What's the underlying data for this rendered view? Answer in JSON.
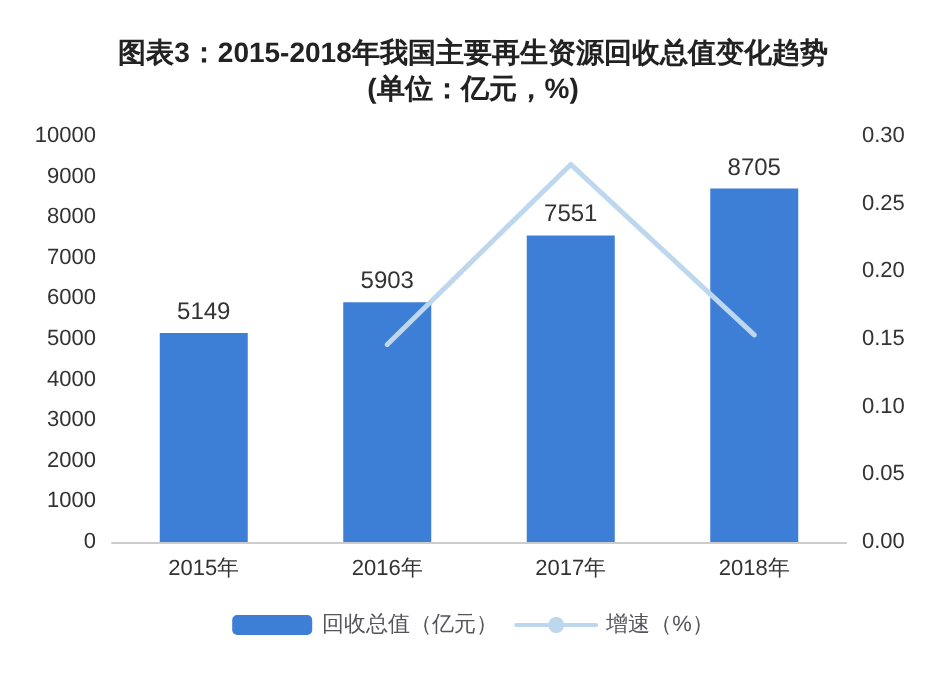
{
  "chart_data": {
    "type": "bar",
    "title": "图表3：2015-2018年我国主要再生资源回收总值变化趋势\n(单位：亿元，%)",
    "categories": [
      "2015年",
      "2016年",
      "2017年",
      "2018年"
    ],
    "series": [
      {
        "name": "回收总值（亿元）",
        "color": "#3d7fd6",
        "values": [
          5149,
          5903,
          7551,
          8705
        ],
        "value_labels": [
          "5149",
          "5903",
          "7551",
          "8705"
        ]
      },
      {
        "name": "增速（%）",
        "type": "line",
        "axis": "y2",
        "color": "#bdd7ee",
        "values": [
          null,
          0.146,
          0.279,
          0.153
        ]
      }
    ],
    "ylim": [
      0,
      10000
    ],
    "yticks": [
      0,
      1000,
      2000,
      3000,
      4000,
      5000,
      6000,
      7000,
      8000,
      9000,
      10000
    ],
    "y2lim": [
      0,
      0.3
    ],
    "y2ticks": [
      {
        "value": 0,
        "label": "0.00"
      },
      {
        "value": 0.05,
        "label": "0.05"
      },
      {
        "value": 0.1,
        "label": "0.10"
      },
      {
        "value": 0.15,
        "label": "0.15"
      },
      {
        "value": 0.2,
        "label": "0.20"
      },
      {
        "value": 0.25,
        "label": "0.25"
      },
      {
        "value": 0.3,
        "label": "0.30"
      }
    ],
    "grid": false,
    "legend": "bottom",
    "marker": "none",
    "line_style": "solid"
  }
}
